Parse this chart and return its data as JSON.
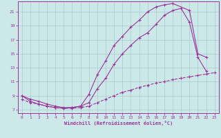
{
  "bg_color": "#cce8e8",
  "line_color": "#993399",
  "grid_color": "#aacccc",
  "xlabel": "Windchill (Refroidissement éolien,°C)",
  "xlim": [
    -0.5,
    23.5
  ],
  "ylim": [
    6.5,
    22.5
  ],
  "xticks": [
    0,
    1,
    2,
    3,
    4,
    5,
    6,
    7,
    8,
    9,
    10,
    11,
    12,
    13,
    14,
    15,
    16,
    17,
    18,
    19,
    20,
    21,
    22,
    23
  ],
  "yticks": [
    7,
    9,
    11,
    13,
    15,
    17,
    19,
    21
  ],
  "curve1_x": [
    0,
    1,
    2,
    3,
    4,
    5,
    6,
    7,
    8,
    9,
    10,
    11,
    12,
    13,
    14,
    15,
    16,
    17,
    18,
    20,
    21,
    22
  ],
  "curve1_y": [
    9.0,
    8.2,
    7.8,
    7.5,
    7.3,
    7.2,
    7.3,
    7.5,
    9.2,
    12.0,
    14.0,
    16.2,
    17.5,
    18.8,
    19.8,
    21.0,
    21.7,
    22.0,
    22.2,
    21.2,
    15.0,
    14.5
  ],
  "curve2_x": [
    0,
    1,
    2,
    3,
    4,
    5,
    6,
    7,
    8,
    9,
    10,
    11,
    12,
    13,
    14,
    15,
    16,
    17,
    18,
    19,
    20,
    21,
    22
  ],
  "curve2_y": [
    9.0,
    8.5,
    8.2,
    7.8,
    7.5,
    7.3,
    7.3,
    7.5,
    8.0,
    10.0,
    11.5,
    13.5,
    15.0,
    16.2,
    17.3,
    18.0,
    19.2,
    20.5,
    21.2,
    21.5,
    19.5,
    14.5,
    12.5
  ],
  "curve3_x": [
    0,
    1,
    2,
    3,
    4,
    5,
    6,
    7,
    8,
    9,
    10,
    11,
    12,
    13,
    14,
    15,
    16,
    17,
    18,
    19,
    20,
    21,
    22,
    23
  ],
  "curve3_y": [
    8.5,
    8.0,
    7.8,
    7.5,
    7.3,
    7.2,
    7.2,
    7.3,
    7.5,
    8.0,
    8.5,
    9.0,
    9.5,
    9.8,
    10.2,
    10.5,
    10.8,
    11.0,
    11.3,
    11.5,
    11.7,
    11.9,
    12.1,
    12.3
  ]
}
